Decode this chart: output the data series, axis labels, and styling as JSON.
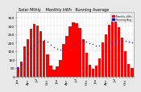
{
  "title": "Solar Mthly    Monthly kWh   Running Average",
  "months_labels": [
    "Jan",
    "",
    "",
    "Apr",
    "",
    "",
    "Jul",
    "",
    "",
    "Oct",
    "",
    "",
    "Jan",
    "",
    "",
    "Apr",
    "",
    "",
    "Jul",
    "",
    "",
    "Oct",
    "",
    "",
    "Jan",
    "",
    "",
    "Apr",
    "",
    "",
    "Jul",
    "",
    "",
    "Oct",
    "",
    ""
  ],
  "bar_values": [
    55,
    90,
    180,
    220,
    280,
    310,
    300,
    270,
    210,
    130,
    65,
    40,
    60,
    100,
    190,
    240,
    295,
    320,
    315,
    285,
    220,
    140,
    70,
    45,
    65,
    105,
    200,
    250,
    305,
    335,
    325,
    290,
    230,
    150,
    75,
    50
  ],
  "running_avg": [
    55,
    72,
    108,
    136,
    167,
    189,
    204,
    213,
    214,
    205,
    189,
    173,
    163,
    157,
    159,
    166,
    176,
    186,
    196,
    202,
    206,
    204,
    198,
    191,
    185,
    181,
    181,
    185,
    190,
    197,
    204,
    210,
    213,
    212,
    207,
    202
  ],
  "bar_color": "#ff0000",
  "avg_color": "#0000ff",
  "bg_color": "#e8e8e8",
  "plot_bg": "#ffffff",
  "grid_color": "#aaaaaa",
  "ylim": [
    0,
    380
  ],
  "yticks": [
    0,
    50,
    100,
    150,
    200,
    250,
    300,
    350
  ],
  "ylabel_fontsize": 3.2,
  "tick_fontsize": 3.0,
  "title_fontsize": 3.5
}
